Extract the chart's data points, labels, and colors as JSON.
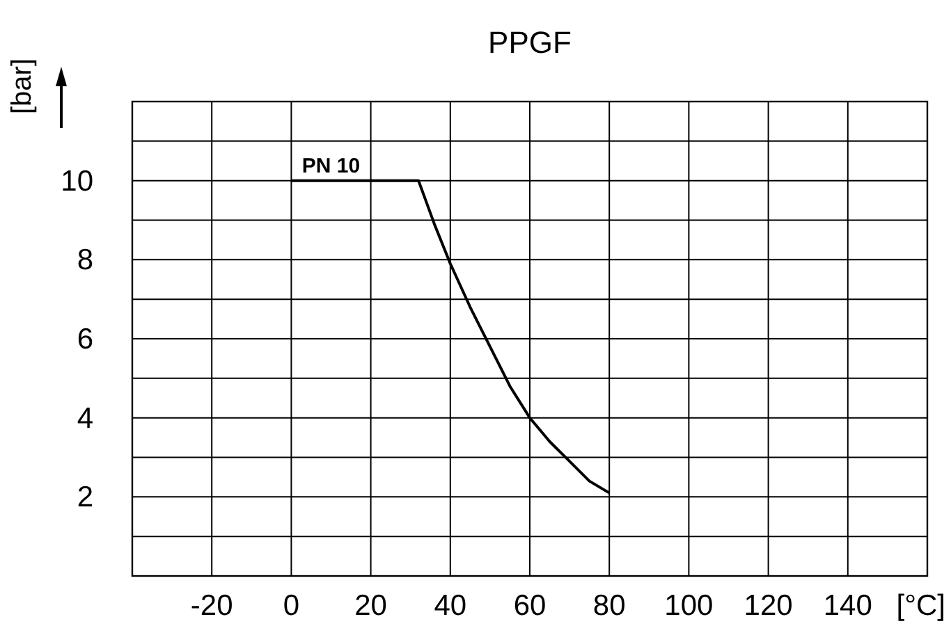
{
  "chart_data": {
    "type": "line",
    "title": "PPGF",
    "xlabel": "[°C]",
    "ylabel": "[bar]",
    "x": [
      0,
      32,
      36,
      40,
      45,
      50,
      55,
      60,
      65,
      70,
      75,
      80
    ],
    "series": [
      {
        "color": "#000000",
        "values": [
          10,
          10,
          8.9,
          7.9,
          6.8,
          5.8,
          4.8,
          4,
          3.4,
          2.9,
          2.4,
          2.1
        ]
      }
    ],
    "xlim": [
      -40,
      160
    ],
    "xticks": [
      {
        "value": -40,
        "label": null
      },
      -20,
      0,
      20,
      40,
      60,
      80,
      100,
      120,
      140,
      {
        "value": 160,
        "label": null
      }
    ],
    "ylim": [
      0,
      12
    ],
    "yticks": [
      {
        "value": 0,
        "label": null
      },
      {
        "value": 1,
        "label": null
      },
      2,
      {
        "value": 3,
        "label": null
      },
      4,
      {
        "value": 5,
        "label": null
      },
      6,
      {
        "value": 7,
        "label": null
      },
      8,
      {
        "value": 9,
        "label": null
      },
      10,
      {
        "value": 11,
        "label": null
      },
      {
        "value": 12,
        "label": null
      }
    ],
    "annotations": [
      {
        "text": "PN 10",
        "x": 10,
        "y": 10
      }
    ],
    "grid": true,
    "marker": "none",
    "line_style": "solid"
  }
}
